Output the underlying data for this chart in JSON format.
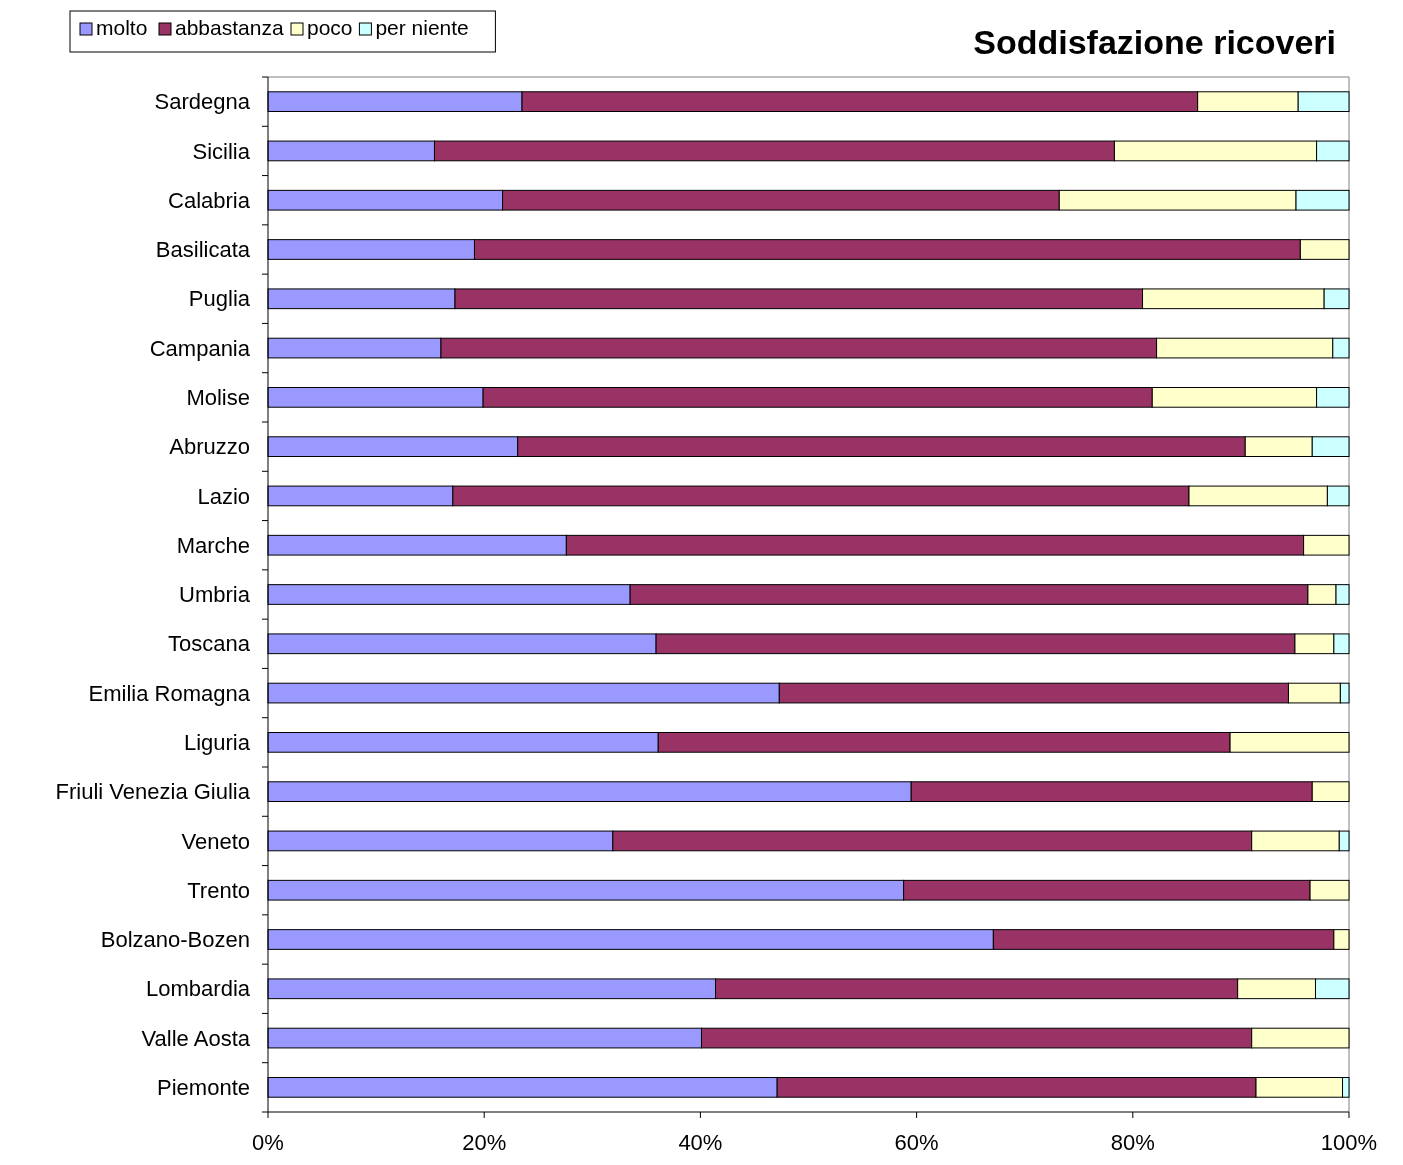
{
  "chart_data": {
    "type": "bar",
    "orientation": "horizontal",
    "stacked": true,
    "title": "Soddisfazione ricoveri",
    "categories": [
      "Sardegna",
      "Sicilia",
      "Calabria",
      "Basilicata",
      "Puglia",
      "Campania",
      "Molise",
      "Abruzzo",
      "Lazio",
      "Marche",
      "Umbria",
      "Toscana",
      "Emilia Romagna",
      "Liguria",
      "Friuli Venezia Giulia",
      "Veneto",
      "Trento",
      "Bolzano-Bozen",
      "Lombardia",
      "Valle Aosta",
      "Piemonte"
    ],
    "series": [
      {
        "name": "molto",
        "color": "#9999ff",
        "values": [
          23.5,
          15.4,
          21.7,
          19.1,
          17.3,
          16.0,
          19.9,
          23.1,
          17.1,
          27.6,
          33.5,
          35.9,
          47.3,
          36.1,
          59.5,
          31.9,
          58.8,
          67.1,
          41.4,
          40.1,
          47.1
        ]
      },
      {
        "name": "abbastanza",
        "color": "#993366",
        "values": [
          62.5,
          62.9,
          51.5,
          76.4,
          63.6,
          66.2,
          61.9,
          67.3,
          68.1,
          68.2,
          62.7,
          59.1,
          47.1,
          52.9,
          37.1,
          59.1,
          37.6,
          31.5,
          48.3,
          50.9,
          44.3
        ]
      },
      {
        "name": "poco",
        "color": "#ffffcc",
        "values": [
          9.3,
          18.7,
          21.9,
          4.5,
          16.8,
          16.3,
          15.2,
          6.2,
          12.8,
          4.2,
          2.6,
          3.6,
          4.8,
          11.0,
          3.4,
          8.1,
          3.6,
          1.4,
          7.2,
          9.0,
          8.0
        ]
      },
      {
        "name": "per niente",
        "color": "#ccffff",
        "values": [
          4.7,
          3.0,
          4.9,
          0,
          2.3,
          1.5,
          3.0,
          3.4,
          2.0,
          0,
          1.2,
          1.4,
          0.8,
          0,
          0,
          0.9,
          0,
          0,
          3.1,
          0,
          0.6
        ]
      }
    ],
    "xlim": [
      0,
      100
    ],
    "xticks": [
      {
        "value": 0,
        "label": "0%"
      },
      {
        "value": 20,
        "label": "20%"
      },
      {
        "value": 40,
        "label": "40%"
      },
      {
        "value": 60,
        "label": "60%"
      },
      {
        "value": 80,
        "label": "80%"
      },
      {
        "value": 100,
        "label": "100%"
      }
    ],
    "legend": "top left"
  }
}
